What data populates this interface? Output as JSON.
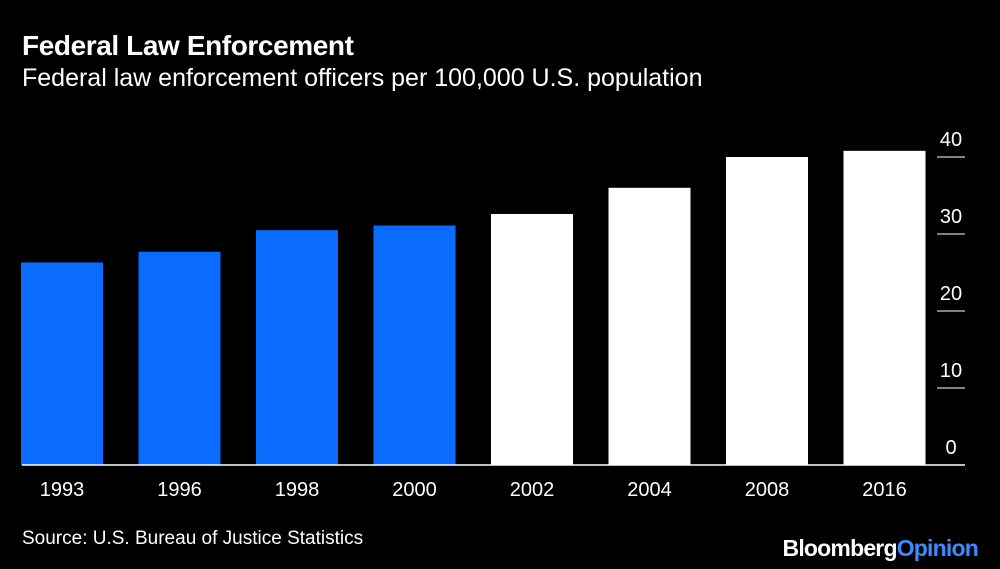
{
  "title": "Federal Law Enforcement",
  "subtitle": "Federal law enforcement officers per 100,000 U.S. population",
  "source": "Source: U.S. Bureau of Justice Statistics",
  "logo": {
    "brand": "Bloomberg",
    "suffix": "Opinion"
  },
  "colors": {
    "background": "#000000",
    "highlight": "#0a6cff",
    "bar": "#ffffff",
    "text": "#ffffff",
    "logo_accent": "#3b8cff"
  },
  "chart_data": {
    "type": "bar",
    "title": "Federal Law Enforcement",
    "subtitle": "Federal law enforcement officers per 100,000 U.S. population",
    "categories": [
      "1993",
      "1996",
      "1998",
      "2000",
      "2002",
      "2004",
      "2008",
      "2016"
    ],
    "values": [
      26.3,
      27.7,
      30.5,
      31.1,
      32.6,
      36.0,
      40.0,
      40.8
    ],
    "highlighted_categories": [
      "1993",
      "1996",
      "1998",
      "2000"
    ],
    "ylim": [
      0,
      40
    ],
    "yticks": [
      0,
      10,
      20,
      30,
      40
    ],
    "xlabel": "",
    "ylabel": "",
    "y_axis_side": "right",
    "grid": false,
    "legend": "none"
  }
}
